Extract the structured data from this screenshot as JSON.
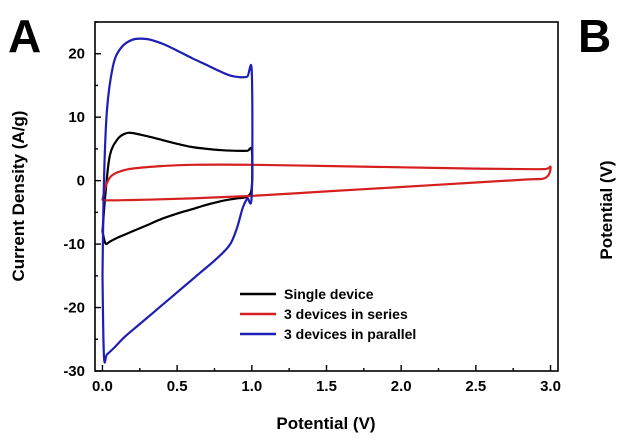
{
  "panels": {
    "a_label": "A",
    "b_label": "B",
    "b_ylabel": "Potential (V)"
  },
  "chart_data": {
    "type": "line",
    "title": "",
    "xlabel": "Potential (V)",
    "ylabel": "Current Density (A/g)",
    "xlim": [
      -0.05,
      3.05
    ],
    "ylim": [
      -30,
      25
    ],
    "xticks": [
      0.0,
      0.5,
      1.0,
      1.5,
      2.0,
      2.5,
      3.0
    ],
    "xtick_labels": [
      "0.0",
      "0.5",
      "1.0",
      "1.5",
      "2.0",
      "2.5",
      "3.0"
    ],
    "yticks": [
      -30,
      -20,
      -10,
      0,
      10,
      20
    ],
    "ytick_labels": [
      "-30",
      "-20",
      "-10",
      "0",
      "10",
      "20"
    ],
    "grid": false,
    "legend_position": "lower-center",
    "series": [
      {
        "name": "Single device",
        "color": "#000000",
        "x": [
          0.0,
          0.02,
          0.05,
          0.1,
          0.15,
          0.2,
          0.3,
          0.4,
          0.5,
          0.6,
          0.7,
          0.8,
          0.9,
          0.97,
          1.0,
          1.0,
          0.97,
          0.9,
          0.8,
          0.7,
          0.6,
          0.5,
          0.4,
          0.3,
          0.2,
          0.1,
          0.05,
          0.02,
          0.0
        ],
        "y": [
          -8.0,
          -2.0,
          4.0,
          6.5,
          7.4,
          7.5,
          7.0,
          6.4,
          5.8,
          5.3,
          5.0,
          4.8,
          4.7,
          4.7,
          4.8,
          -1.0,
          -2.5,
          -2.8,
          -3.2,
          -3.8,
          -4.5,
          -5.2,
          -6.0,
          -7.0,
          -8.0,
          -9.0,
          -9.6,
          -9.9,
          -8.0
        ]
      },
      {
        "name": "3 devices in series",
        "color": "#d62020",
        "x": [
          0.0,
          0.02,
          0.05,
          0.1,
          0.2,
          0.4,
          0.6,
          1.0,
          1.5,
          2.0,
          2.5,
          2.9,
          2.98,
          3.0,
          2.99,
          2.95,
          2.85,
          2.5,
          2.0,
          1.5,
          1.0,
          0.6,
          0.3,
          0.1,
          0.05,
          0.02,
          0.0
        ],
        "y": [
          -3.0,
          -1.0,
          0.5,
          1.3,
          1.9,
          2.3,
          2.5,
          2.5,
          2.3,
          2.1,
          1.9,
          1.8,
          1.9,
          2.2,
          1.0,
          0.3,
          0.2,
          -0.3,
          -1.0,
          -1.7,
          -2.4,
          -2.8,
          -3.0,
          -3.1,
          -3.1,
          -3.1,
          -3.0
        ]
      },
      {
        "name": "3 devices in parallel",
        "color": "#1e1eb4",
        "x": [
          0.0,
          0.01,
          0.03,
          0.07,
          0.12,
          0.2,
          0.3,
          0.4,
          0.5,
          0.6,
          0.7,
          0.78,
          0.85,
          0.92,
          0.97,
          1.0,
          1.0,
          0.97,
          0.94,
          0.9,
          0.85,
          0.75,
          0.65,
          0.55,
          0.45,
          0.35,
          0.25,
          0.15,
          0.08,
          0.03,
          0.01,
          0.0
        ],
        "y": [
          -15.0,
          0.0,
          11.0,
          18.0,
          20.8,
          22.2,
          22.3,
          21.6,
          20.5,
          19.3,
          18.2,
          17.3,
          16.6,
          16.3,
          16.4,
          17.0,
          -2.0,
          -2.8,
          -4.2,
          -7.5,
          -10.2,
          -12.6,
          -14.6,
          -16.6,
          -18.6,
          -20.6,
          -22.6,
          -24.6,
          -26.3,
          -27.4,
          -27.8,
          -15.0
        ]
      }
    ]
  }
}
